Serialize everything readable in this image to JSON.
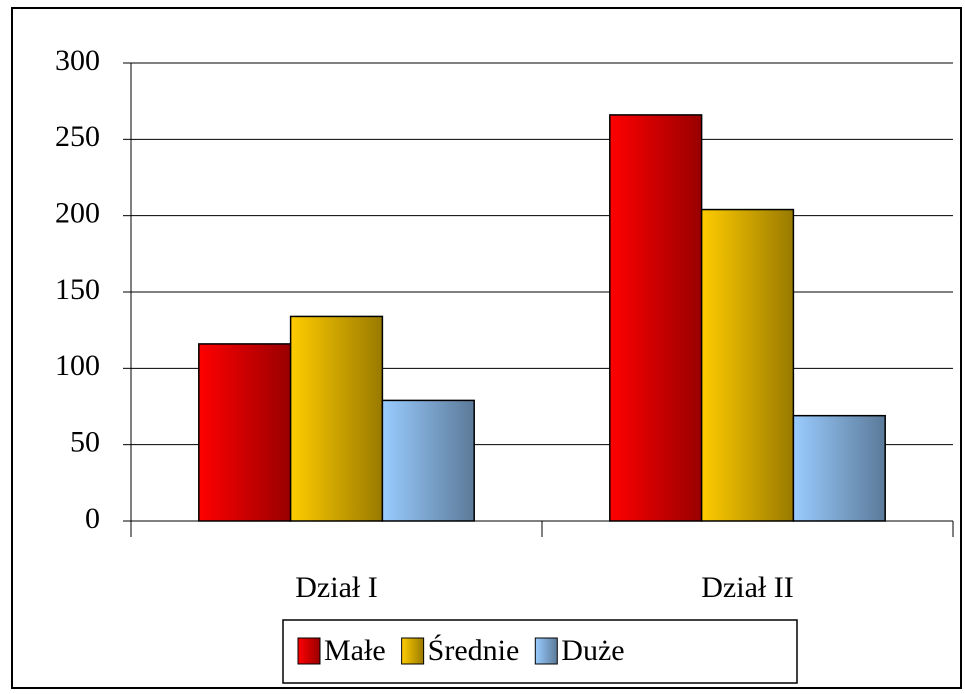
{
  "chart_data": {
    "type": "bar",
    "categories": [
      "Dział I",
      "Dział II"
    ],
    "series": [
      {
        "name": "Małe",
        "color": "#ff0000",
        "values": [
          116,
          266
        ]
      },
      {
        "name": "Średnie",
        "color": "#ffcc00",
        "values": [
          134,
          204
        ]
      },
      {
        "name": "Duże",
        "color": "#99ccff",
        "values": [
          79,
          69
        ]
      }
    ],
    "ylim": [
      0,
      300
    ],
    "yticks": [
      0,
      50,
      100,
      150,
      200,
      250,
      300
    ],
    "grid": true,
    "legend": "bottom"
  }
}
